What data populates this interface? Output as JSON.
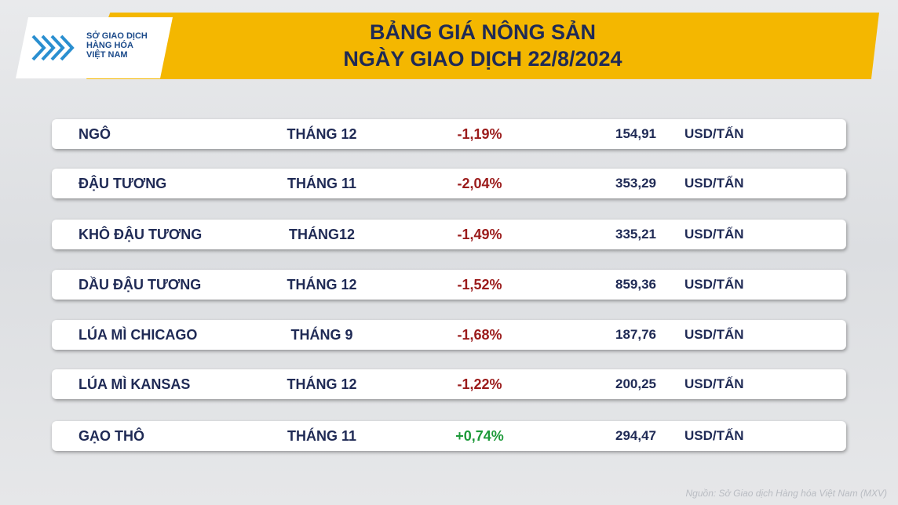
{
  "header": {
    "logo_text": [
      "SỞ GIAO DỊCH",
      "HÀNG HÓA",
      "VIỆT NAM"
    ],
    "title": [
      "BẢNG GIÁ NÔNG SẢN",
      "NGÀY GIAO DỊCH 22/8/2024"
    ]
  },
  "table": {
    "rows": [
      [
        "NGÔ",
        "THÁNG 12",
        "-1,19%",
        "154,91",
        "USD/TẤN"
      ],
      [
        "ĐẬU TƯƠNG",
        "THÁNG 11",
        "-2,04%",
        "353,29",
        "USD/TẤN"
      ],
      [
        "KHÔ ĐẬU TƯƠNG",
        "THÁNG12",
        "-1,49%",
        "335,21",
        "USD/TẤN"
      ],
      [
        "DẦU ĐẬU TƯƠNG",
        "THÁNG 12",
        "-1,52%",
        "859,36",
        "USD/TẤN"
      ],
      [
        "LÚA MÌ CHICAGO",
        "THÁNG 9",
        "-1,68%",
        "187,76",
        "USD/TẤN"
      ],
      [
        "LÚA MÌ KANSAS",
        "THÁNG 12",
        "-1,22%",
        "200,25",
        "USD/TẤN"
      ],
      [
        "GẠO THÔ",
        "THÁNG 11",
        "+0,74%",
        "294,47",
        "USD/TẤN"
      ]
    ]
  },
  "source": "Nguồn: Sở Giao dịch Hàng hóa Việt Nam (MXV)"
}
